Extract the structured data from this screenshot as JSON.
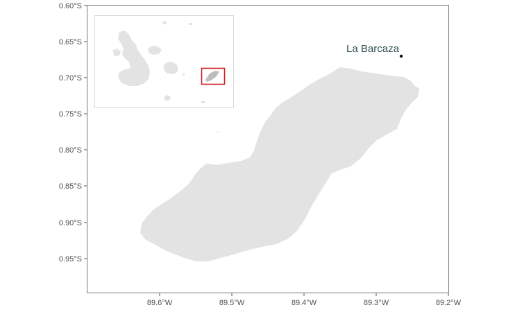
{
  "map": {
    "y_axis_ticks": [
      "0.60°S",
      "0.65°S",
      "0.70°S",
      "0.75°S",
      "0.80°S",
      "0.85°S",
      "0.90°S",
      "0.95°S"
    ],
    "x_axis_ticks": [
      "89.6°W",
      "89.5°W",
      "89.4°W",
      "89.3°W",
      "89.2°W"
    ],
    "point_label": "La Barcaza",
    "land_color": "#e3e3e3",
    "point_color": "#111111",
    "inset_highlight_color": "#d0191f",
    "axis_color": "#777777",
    "inset_frame_color": "#d9d9d9"
  }
}
